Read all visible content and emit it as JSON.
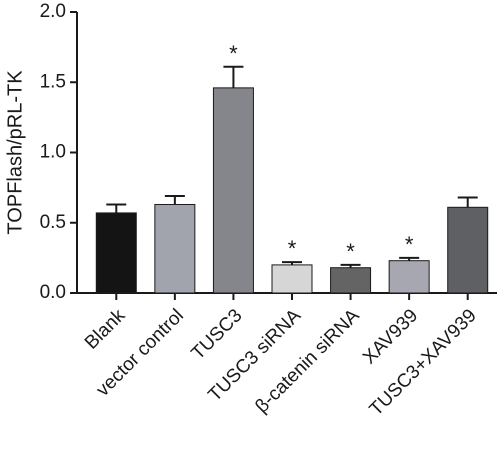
{
  "chart_data": {
    "type": "bar",
    "title": "",
    "xlabel": "",
    "ylabel": "TOPFlash/pRL-TK",
    "ylim": [
      0,
      2.0
    ],
    "yticks": [
      "0.0",
      "0.5",
      "1.0",
      "1.5",
      "2.0"
    ],
    "grid": false,
    "categories": [
      "Blank",
      "vector control",
      "TUSC3",
      "TUSC3 siRNA",
      "β-catenin siRNA",
      "XAV939",
      "TUSC3+XAV939"
    ],
    "values": [
      0.57,
      0.63,
      1.46,
      0.2,
      0.18,
      0.23,
      0.61
    ],
    "errors": [
      0.06,
      0.06,
      0.15,
      0.02,
      0.02,
      0.02,
      0.07
    ],
    "significance": [
      "",
      "",
      "*",
      "*",
      "*",
      "*",
      ""
    ],
    "bar_colors": [
      "#141414",
      "#a2a4ad",
      "#85868c",
      "#d6d6d6",
      "#646464",
      "#a6a7b0",
      "#5f6064"
    ]
  }
}
